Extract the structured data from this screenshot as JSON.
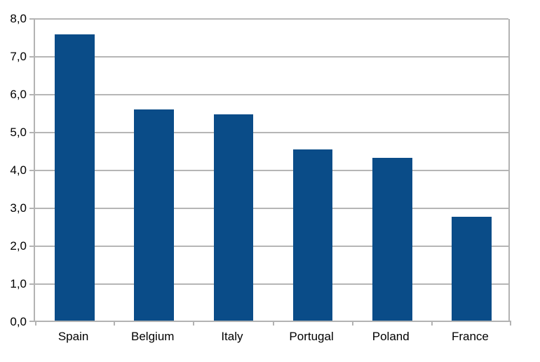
{
  "chart_data": {
    "type": "bar",
    "title": "",
    "xlabel": "",
    "ylabel": "",
    "categories": [
      "Spain",
      "Belgium",
      "Italy",
      "Portugal",
      "Poland",
      "France"
    ],
    "values": [
      7.55,
      5.58,
      5.45,
      4.52,
      4.3,
      2.75
    ],
    "ylim": [
      0,
      8
    ],
    "ytick_step": 1,
    "ytick_labels": [
      "0,0",
      "1,0",
      "2,0",
      "3,0",
      "4,0",
      "5,0",
      "6,0",
      "7,0",
      "8,0"
    ],
    "decimal_separator": ",",
    "grid": true,
    "legend": false,
    "bar_color": "#0a4c88",
    "grid_color": "#b6b6b6",
    "axis_color": "#b3b3b3",
    "text_color": "#000000",
    "background_color": "#ffffff"
  }
}
